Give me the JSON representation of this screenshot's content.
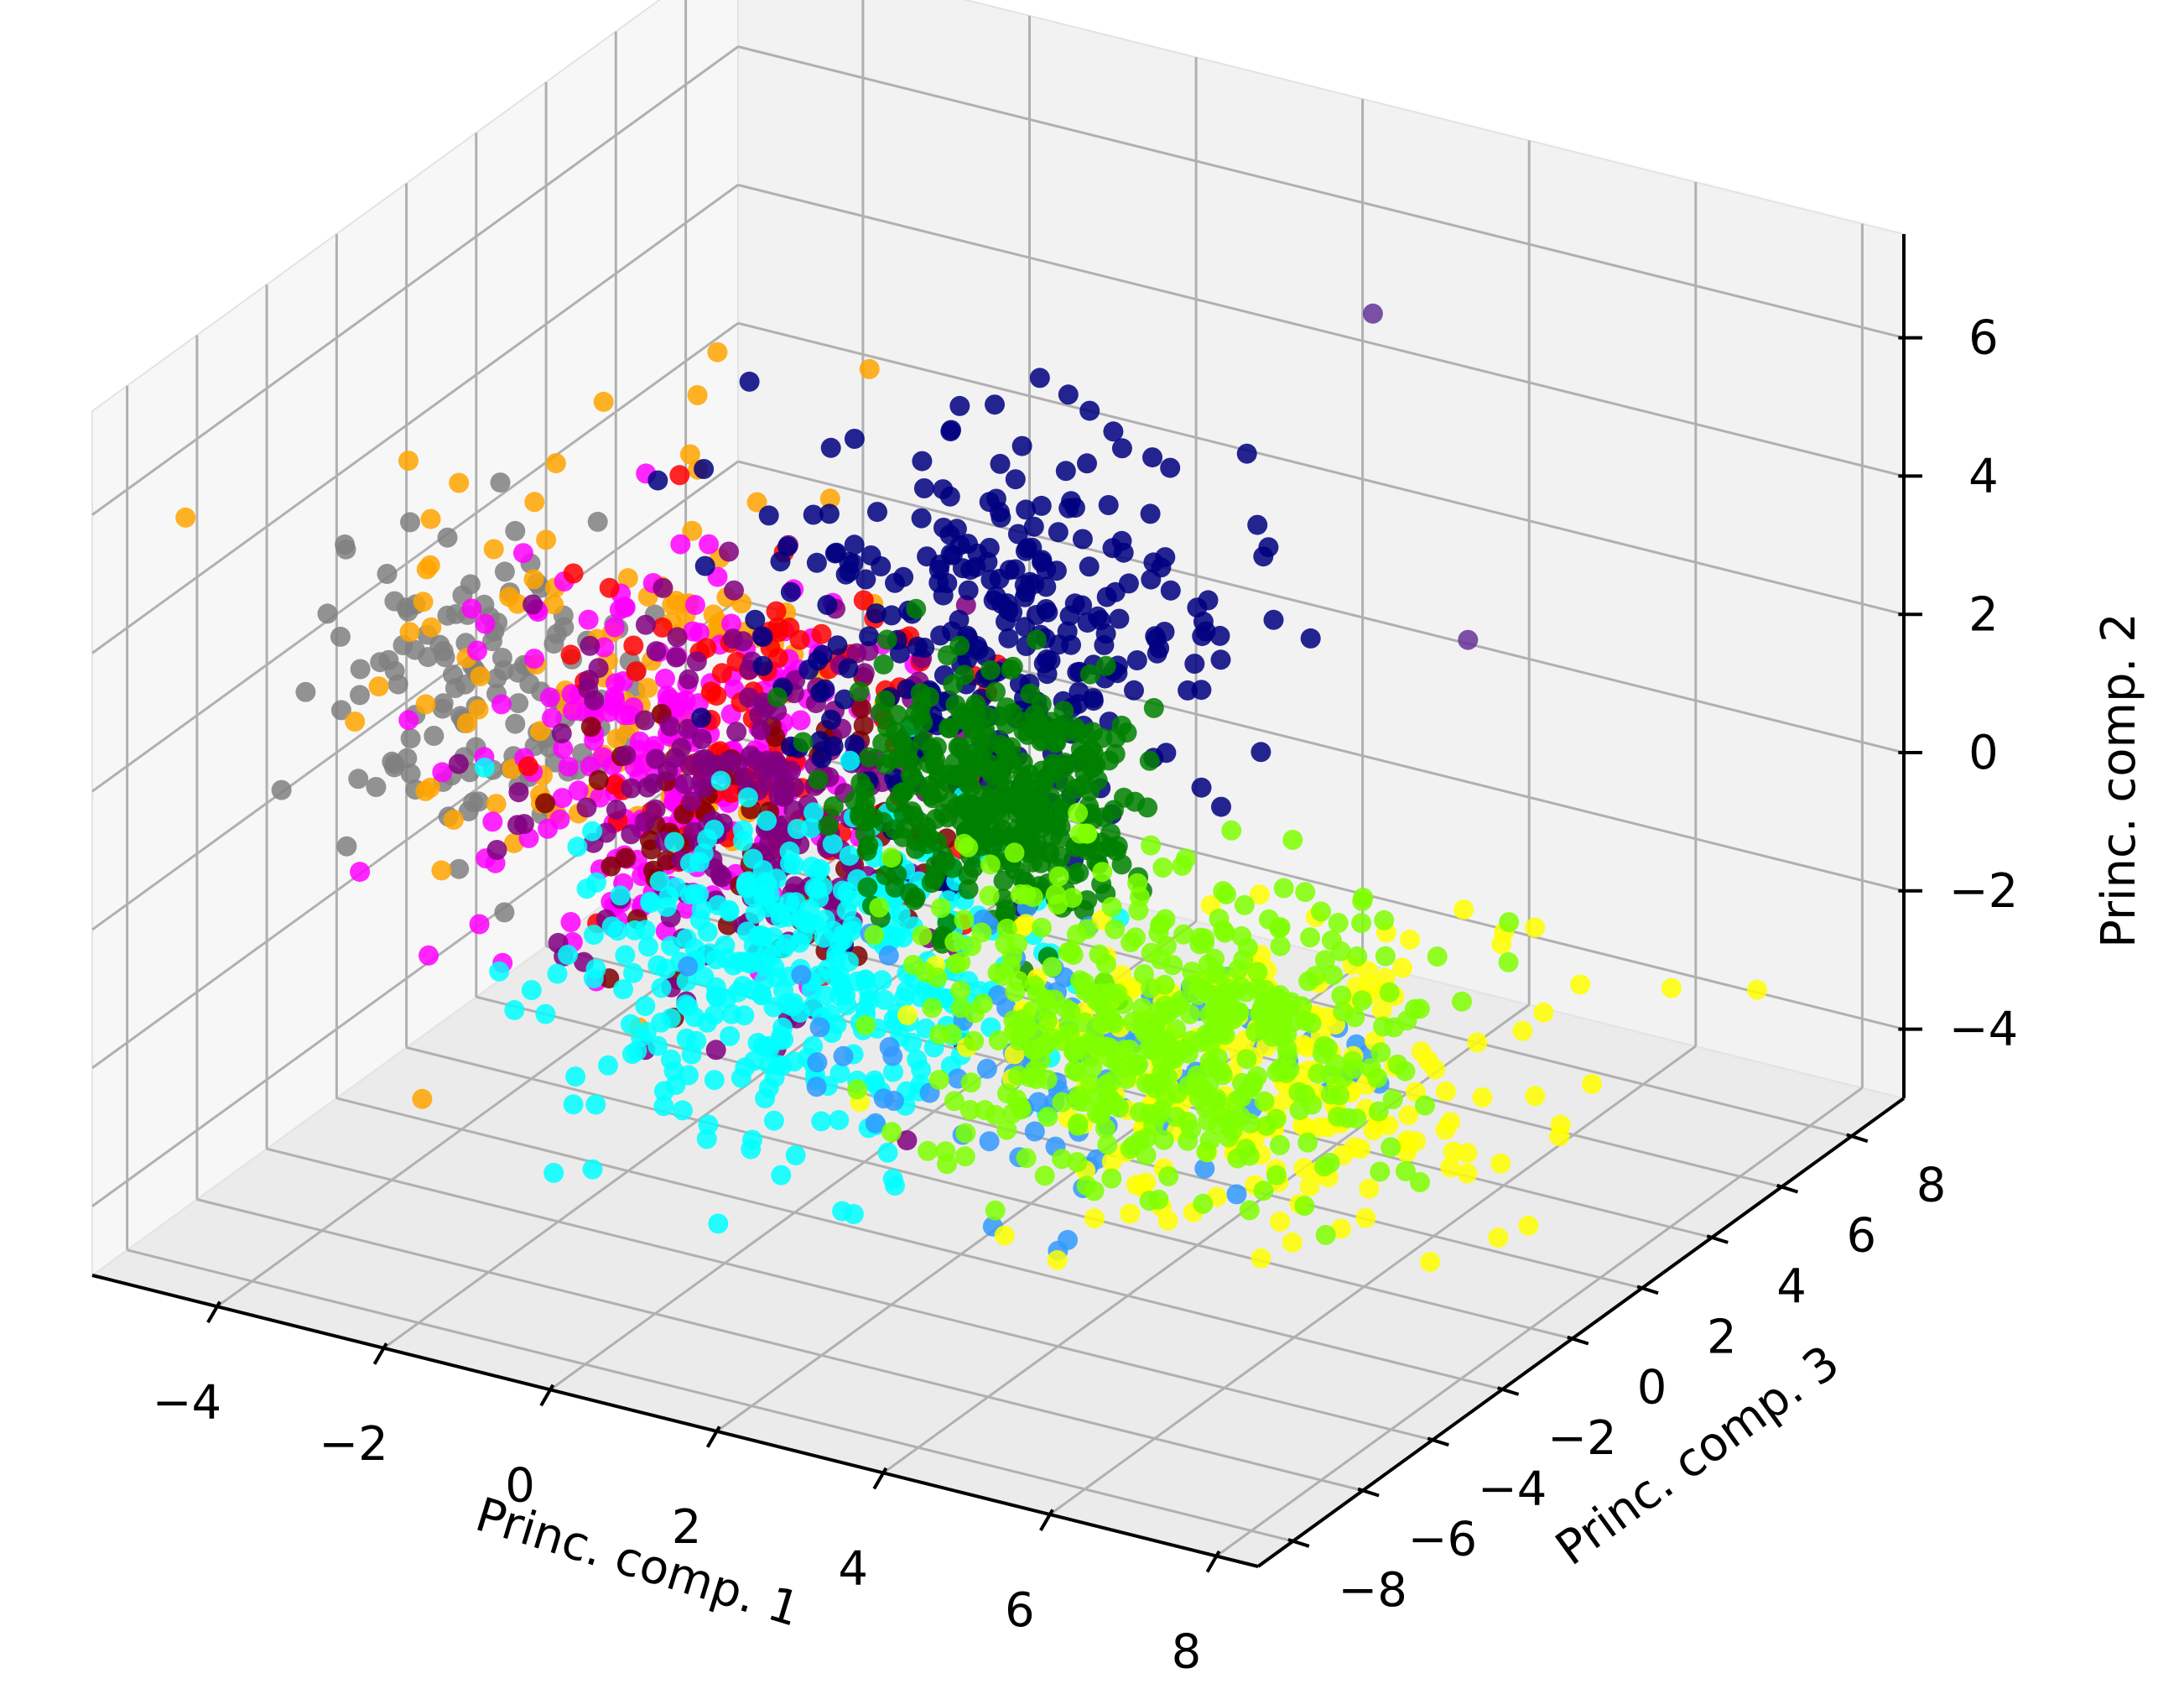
{
  "chart_data": {
    "type": "scatter",
    "projection": "3d",
    "title": "",
    "xlabel": "Princ. comp. 1",
    "ylabel": "Princ. comp. 3",
    "zlabel": "Princ. comp. 2",
    "xlim": [
      -5.5,
      8.5
    ],
    "ylim": [
      -9,
      9.5
    ],
    "zlim": [
      -5,
      7.5
    ],
    "xticks": [
      "−4",
      "−2",
      "0",
      "2",
      "4",
      "6",
      "8"
    ],
    "yticks": [
      "−8",
      "−6",
      "−4",
      "−2",
      "0",
      "2",
      "4",
      "6",
      "8"
    ],
    "zticks": [
      "−4",
      "−2",
      "0",
      "2",
      "4",
      "6"
    ],
    "grid": true,
    "legend": "none",
    "series": [
      {
        "color": "#808080",
        "center": [
          -4.2,
          -1.0,
          1.0
        ],
        "spread": [
          0.9,
          1.2,
          1.0
        ],
        "count": 130
      },
      {
        "color": "#ffa500",
        "center": [
          -3.0,
          0.5,
          0.8
        ],
        "spread": [
          1.2,
          2.0,
          1.6
        ],
        "count": 120
      },
      {
        "color": "#ff00ff",
        "center": [
          -2.3,
          0.0,
          0.2
        ],
        "spread": [
          1.0,
          1.4,
          1.2
        ],
        "count": 230
      },
      {
        "color": "#ff0000",
        "center": [
          -1.6,
          1.0,
          0.0
        ],
        "spread": [
          1.1,
          1.6,
          1.4
        ],
        "count": 90
      },
      {
        "color": "#800000",
        "center": [
          -1.3,
          0.3,
          -0.8
        ],
        "spread": [
          1.0,
          1.4,
          1.0
        ],
        "count": 70
      },
      {
        "color": "#800080",
        "center": [
          -1.2,
          0.0,
          -0.2
        ],
        "spread": [
          1.0,
          1.3,
          1.2
        ],
        "count": 220
      },
      {
        "color": "#000080",
        "center": [
          0.6,
          2.4,
          1.8
        ],
        "spread": [
          1.2,
          1.6,
          1.4
        ],
        "count": 300
      },
      {
        "color": "#00ffff",
        "center": [
          0.5,
          -3.0,
          -1.0
        ],
        "spread": [
          1.1,
          1.8,
          1.0
        ],
        "count": 380
      },
      {
        "color": "#008000",
        "center": [
          1.4,
          0.5,
          0.5
        ],
        "spread": [
          0.8,
          1.0,
          0.8
        ],
        "count": 380
      },
      {
        "color": "#3399ff",
        "center": [
          3.2,
          -1.5,
          -2.2
        ],
        "spread": [
          1.4,
          1.8,
          1.0
        ],
        "count": 90
      },
      {
        "color": "#ffff00",
        "center": [
          4.6,
          0.5,
          -2.6
        ],
        "spread": [
          1.4,
          1.8,
          0.8
        ],
        "count": 220
      },
      {
        "color": "#7fff00",
        "center": [
          3.8,
          -0.4,
          -1.8
        ],
        "spread": [
          1.3,
          1.6,
          0.9
        ],
        "count": 460
      }
    ],
    "outliers": [
      {
        "color": "#663399",
        "x": 3.8,
        "y": 5.5,
        "z": 6.4
      },
      {
        "color": "#663399",
        "x": 6.2,
        "y": 2.5,
        "z": 3.5
      }
    ]
  }
}
